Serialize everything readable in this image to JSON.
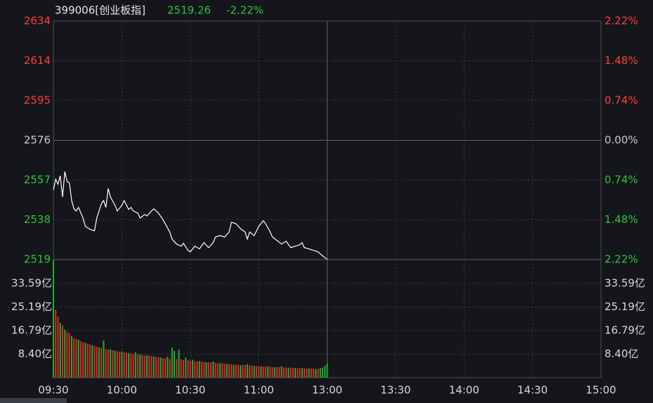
{
  "chart_data": [
    {
      "type": "line",
      "title": "399006[创业板指]",
      "price": 2519.26,
      "change": {
        "value": -2.22,
        "label": "-2.22%"
      },
      "up_color": "#ff3d3d",
      "down_color": "#2fc23c",
      "flat_color": "#c8c8c8",
      "grid": true,
      "xlim": [
        0,
        240
      ],
      "xticks": [
        {
          "value": 0,
          "label": "09:30"
        },
        {
          "value": 30,
          "label": "10:00"
        },
        {
          "value": 60,
          "label": "10:30"
        },
        {
          "value": 90,
          "label": "11:00"
        },
        {
          "value": 120,
          "label": "13:00"
        },
        {
          "value": 150,
          "label": "13:30"
        },
        {
          "value": 180,
          "label": "14:00"
        },
        {
          "value": 210,
          "label": "14:30"
        },
        {
          "value": 240,
          "label": "15:00"
        }
      ],
      "ylim": [
        2519.2,
        2633.6
      ],
      "yticks": [
        {
          "value": 2519.2,
          "label": "2519"
        },
        {
          "value": 2538.3,
          "label": "2538"
        },
        {
          "value": 2557.3,
          "label": "2557"
        },
        {
          "value": 2576.4,
          "label": "2576"
        },
        {
          "value": 2595.5,
          "label": "2595"
        },
        {
          "value": 2614.5,
          "label": "2614"
        },
        {
          "value": 2633.6,
          "label": "2634"
        }
      ],
      "y2lim": [
        -2.22,
        2.22
      ],
      "y2ticks": [
        {
          "value": -2.22,
          "label": "2.22%"
        },
        {
          "value": -1.48,
          "label": "1.48%"
        },
        {
          "value": -0.74,
          "label": "0.74%"
        },
        {
          "value": 0,
          "label": "0.00%"
        },
        {
          "value": 0.74,
          "label": "0.74%"
        },
        {
          "value": 1.48,
          "label": "1.48%"
        },
        {
          "value": 2.22,
          "label": "2.22%"
        }
      ],
      "series": [
        {
          "color": "#ffffff",
          "x": [
            0,
            1,
            2,
            3,
            4,
            5,
            6,
            7,
            8,
            9,
            10,
            11,
            13,
            14,
            16,
            18,
            19,
            21,
            22,
            23,
            24,
            25,
            27,
            28,
            30,
            31,
            33,
            34,
            35,
            37,
            38,
            40,
            41,
            43,
            44,
            46,
            48,
            49,
            51,
            52,
            54,
            56,
            57,
            59,
            60,
            62,
            64,
            66,
            68,
            70,
            71,
            73,
            75,
            77,
            78,
            80,
            82,
            84,
            85,
            86,
            88,
            90,
            92,
            93,
            95,
            96,
            98,
            100,
            102,
            104,
            106,
            108,
            109,
            110,
            112,
            114,
            116,
            118,
            120
          ],
          "values": [
            2552.6,
            2557.7,
            2555.3,
            2559.4,
            2549.2,
            2561.4,
            2556.6,
            2556.0,
            2547.5,
            2543.5,
            2542.5,
            2544.2,
            2539.1,
            2535.1,
            2533.7,
            2533.0,
            2539.1,
            2545.9,
            2547.5,
            2544.2,
            2553.3,
            2549.2,
            2545.2,
            2542.5,
            2545.2,
            2547.5,
            2543.2,
            2544.2,
            2542.5,
            2541.5,
            2539.1,
            2540.8,
            2540.1,
            2542.5,
            2543.5,
            2541.5,
            2538.4,
            2536.4,
            2532.4,
            2529.0,
            2526.6,
            2525.6,
            2527.0,
            2523.6,
            2522.9,
            2525.6,
            2524.3,
            2527.3,
            2524.9,
            2527.3,
            2530.0,
            2530.7,
            2530.0,
            2532.4,
            2537.1,
            2536.4,
            2534.0,
            2532.4,
            2529.0,
            2532.4,
            2530.7,
            2535.1,
            2537.8,
            2536.4,
            2532.4,
            2530.0,
            2528.3,
            2526.6,
            2528.0,
            2524.9,
            2525.6,
            2526.3,
            2527.3,
            2524.9,
            2524.3,
            2523.6,
            2522.9,
            2520.9,
            2519.3
          ]
        }
      ]
    },
    {
      "type": "bar",
      "ylim": [
        0,
        42.1
      ],
      "yticks": [
        {
          "value": 8.4,
          "label": "8.40亿"
        },
        {
          "value": 16.79,
          "label": "16.79亿"
        },
        {
          "value": 25.19,
          "label": "25.19亿"
        },
        {
          "value": 33.59,
          "label": "33.59亿"
        }
      ],
      "series": [
        {
          "color": "#d92b2b",
          "x": [
            1,
            2,
            4,
            6,
            7,
            9,
            10,
            12,
            13,
            15,
            16,
            18,
            19,
            21,
            23,
            24,
            26,
            28,
            29,
            31,
            32,
            34,
            35,
            37,
            39,
            40,
            42,
            43,
            45,
            46,
            48,
            49,
            51,
            54,
            56,
            57,
            59,
            60,
            62,
            63,
            65,
            66,
            68,
            69,
            71,
            72,
            74,
            75,
            77,
            78,
            80,
            81,
            83,
            84,
            86,
            87,
            89,
            90,
            92,
            93,
            95,
            96,
            98,
            99,
            101,
            102,
            104,
            105,
            107,
            108,
            110,
            111,
            113,
            114,
            116
          ],
          "values": [
            24.3,
            21.8,
            18.6,
            16.4,
            15.9,
            14.2,
            13.8,
            13.0,
            12.7,
            12.1,
            11.9,
            11.2,
            11.0,
            10.5,
            10.3,
            10.0,
            9.8,
            9.5,
            9.2,
            9.0,
            8.9,
            8.6,
            8.5,
            8.4,
            8.1,
            7.9,
            7.8,
            7.7,
            7.4,
            7.3,
            7.0,
            6.9,
            6.8,
            6.6,
            6.5,
            6.3,
            6.2,
            6.0,
            5.9,
            5.8,
            5.7,
            5.6,
            5.5,
            5.4,
            5.3,
            5.2,
            5.1,
            5.0,
            4.9,
            4.8,
            4.7,
            4.6,
            4.5,
            4.5,
            4.4,
            4.3,
            4.2,
            4.1,
            4.0,
            4.0,
            3.9,
            3.8,
            3.8,
            3.7,
            3.6,
            3.6,
            3.5,
            3.5,
            3.4,
            3.4,
            3.3,
            3.3,
            3.2,
            3.2,
            3.1
          ]
        },
        {
          "color": "#1fb02a",
          "x": [
            0,
            3,
            5,
            8,
            11,
            14,
            17,
            20,
            22,
            25,
            27,
            30,
            33,
            36,
            38,
            41,
            44,
            47,
            50,
            52,
            53,
            55,
            58,
            61,
            64,
            67,
            70,
            73,
            76,
            79,
            82,
            85,
            88,
            91,
            94,
            97,
            100,
            103,
            106,
            109,
            112,
            115,
            117,
            118,
            119,
            120
          ],
          "values": [
            42.0,
            19.5,
            17.2,
            14.8,
            13.5,
            12.4,
            11.6,
            10.8,
            13.2,
            10.1,
            9.6,
            9.4,
            8.8,
            9.1,
            8.3,
            8.0,
            7.6,
            7.2,
            7.5,
            10.7,
            9.6,
            10.0,
            7.1,
            6.4,
            5.9,
            5.5,
            5.8,
            5.1,
            4.9,
            4.6,
            4.4,
            4.8,
            4.2,
            4.0,
            3.9,
            3.7,
            4.1,
            3.6,
            3.4,
            3.5,
            3.3,
            3.2,
            3.4,
            3.6,
            4.3,
            5.1
          ]
        }
      ]
    }
  ]
}
